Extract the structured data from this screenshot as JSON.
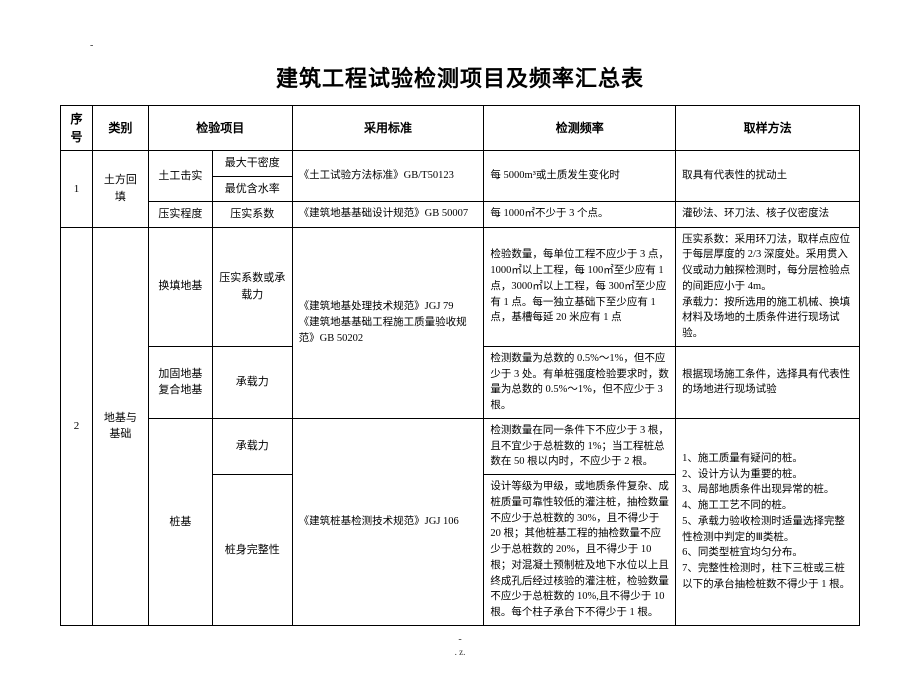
{
  "marks": {
    "top_dash": "-",
    "bottom_dash": "-",
    "page_mark": ". z."
  },
  "title": "建筑工程试验检测项目及频率汇总表",
  "headers": {
    "seq": "序号",
    "category": "类别",
    "project": "检验项目",
    "standard": "采用标准",
    "frequency": "检测频率",
    "method": "取样方法"
  },
  "rows": {
    "r1_seq": "1",
    "r1_cat": "土方回填",
    "r1_p1a": "土工击实",
    "r1_p2a": "最大干密度",
    "r1_p2b": "最优含水率",
    "r1_std_a": "《土工试验方法标准》GB/T50123",
    "r1_freq_a": "每 5000m³或土质发生变化时",
    "r1_meth_a": "取具有代表性的扰动土",
    "r1_p1b": "压实程度",
    "r1_p2c": "压实系数",
    "r1_std_b": "《建筑地基基础设计规范》GB 50007",
    "r1_freq_b": "每 1000㎡不少于 3 个点。",
    "r1_meth_b": "灌砂法、环刀法、核子仪密度法",
    "r2_seq": "2",
    "r2_cat": "地基与基础",
    "r2_p1a": "换填地基",
    "r2_p2a": "压实系数或承载力",
    "r2_std_a": "《建筑地基处理技术规范》JGJ 79\n《建筑地基基础工程施工质量验收规范》GB 50202",
    "r2_freq_a": "检验数量，每单位工程不应少于 3 点，1000㎡以上工程，每 100㎡至少应有 1 点，3000㎡以上工程，每 300㎡至少应有 1 点。每一独立基础下至少应有 1 点，基槽每延 20 米应有 1 点",
    "r2_meth_a": "压实系数：采用环刀法，取样点应位于每层厚度的 2/3 深度处。采用贯入仪或动力触探检测时，每分层检验点的间距应小于 4m。\n承载力：按所选用的施工机械、换填材料及场地的土质条件进行现场试验。",
    "r2_p1b": "加固地基复合地基",
    "r2_p2b": "承载力",
    "r2_freq_b": "检测数量为总数的 0.5%～1%，但不应少于 3 处。有单桩强度检验要求时，数量为总数的 0.5%～1%，但不应少于 3 根。",
    "r2_meth_b": "根据现场施工条件，选择具有代表性的场地进行现场试验",
    "r2_p1c": "桩基",
    "r2_p2c": "承载力",
    "r2_std_c": "《建筑桩基检测技术规范》JGJ 106",
    "r2_freq_c": "检测数量在同一条件下不应少于 3 根，且不宜少于总桩数的 1%；当工程桩总数在 50 根以内时，不应少于 2 根。",
    "r2_p2d": "桩身完整性",
    "r2_freq_d": "设计等级为甲级，或地质条件复杂、成桩质量可靠性较低的灌注桩，抽检数量不应少于总桩数的 30%，且不得少于 20 根；其他桩基工程的抽检数量不应少于总桩数的 20%，且不得少于 10 根；对混凝土预制桩及地下水位以上且终成孔后经过核验的灌注桩，检验数量不应少于总桩数的 10%,且不得少于 10 根。每个柱子承台下不得少于 1 根。",
    "r2_meth_cd": "1、施工质量有疑问的桩。\n2、设计方认为重要的桩。\n3、局部地质条件出现异常的桩。\n4、施工工艺不同的桩。\n5、承载力验收检测时适量选择完整性检测中判定的Ⅲ类桩。\n6、同类型桩宜均匀分布。\n7、完整性检测时，柱下三桩或三桩以下的承台抽检桩数不得少于 1 根。"
  }
}
